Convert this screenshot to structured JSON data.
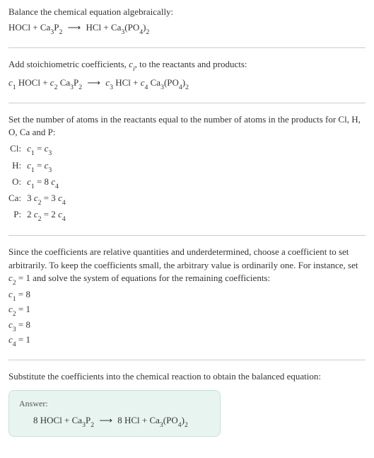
{
  "title": "Balance the chemical equation algebraically:",
  "reaction_plain": {
    "lhs": "HOCl + Ca",
    "lhs_sub1": "3",
    "lhs2": "P",
    "lhs_sub2": "2",
    "arrow": "⟶",
    "rhs": "HCl + Ca",
    "rhs_sub1": "3",
    "rhs2": "(PO",
    "rhs_sub2": "4",
    "rhs3": ")",
    "rhs_sub3": "2"
  },
  "step1_text": "Add stoichiometric coefficients, ",
  "step1_ci": "c",
  "step1_ci_sub": "i",
  "step1_text2": ", to the reactants and products:",
  "stoich": {
    "c1": "c",
    "c1s": "1",
    "c1_sp": " HOCl + ",
    "c2": "c",
    "c2s": "2",
    "c2_sp": " Ca",
    "c2_sub1": "3",
    "c2_p": "P",
    "c2_sub2": "2",
    "arrow": "⟶",
    "c3": "c",
    "c3s": "3",
    "c3_sp": " HCl + ",
    "c4": "c",
    "c4s": "4",
    "c4_sp": " Ca",
    "c4_sub1": "3",
    "c4_po": "(PO",
    "c4_sub2": "4",
    "c4_close": ")",
    "c4_sub3": "2"
  },
  "step2_text": "Set the number of atoms in the reactants equal to the number of atoms in the products for Cl, H, O, Ca and P:",
  "constraints": [
    {
      "elem": "Cl:",
      "lhs_c": "c",
      "lhs_s": "1",
      "eq": " = ",
      "rhs_c": "c",
      "rhs_s": "3",
      "rhs_pre": "",
      "rhs_post": ""
    },
    {
      "elem": "H:",
      "lhs_c": "c",
      "lhs_s": "1",
      "eq": " = ",
      "rhs_c": "c",
      "rhs_s": "3",
      "rhs_pre": "",
      "rhs_post": ""
    },
    {
      "elem": "O:",
      "lhs_c": "c",
      "lhs_s": "1",
      "eq": " = 8 ",
      "rhs_c": "c",
      "rhs_s": "4",
      "rhs_pre": "",
      "rhs_post": ""
    },
    {
      "elem": "Ca:",
      "lhs_pre": "3 ",
      "lhs_c": "c",
      "lhs_s": "2",
      "eq": " = 3 ",
      "rhs_c": "c",
      "rhs_s": "4",
      "rhs_pre": "",
      "rhs_post": ""
    },
    {
      "elem": "P:",
      "lhs_pre": "2 ",
      "lhs_c": "c",
      "lhs_s": "2",
      "eq": " = 2 ",
      "rhs_c": "c",
      "rhs_s": "4",
      "rhs_pre": "",
      "rhs_post": ""
    }
  ],
  "step3_text1": "Since the coefficients are relative quantities and underdetermined, choose a coefficient to set arbitrarily. To keep the coefficients small, the arbitrary value is ordinarily one. For instance, set ",
  "step3_c": "c",
  "step3_cs": "2",
  "step3_text2": " = 1 and solve the system of equations for the remaining coefficients:",
  "solutions": [
    {
      "c": "c",
      "s": "1",
      "val": " = 8"
    },
    {
      "c": "c",
      "s": "2",
      "val": " = 1"
    },
    {
      "c": "c",
      "s": "3",
      "val": " = 8"
    },
    {
      "c": "c",
      "s": "4",
      "val": " = 1"
    }
  ],
  "step4_text": "Substitute the coefficients into the chemical reaction to obtain the balanced equation:",
  "answer_label": "Answer:",
  "answer": {
    "lhs1": "8 HOCl + Ca",
    "sub1": "3",
    "lhs2": "P",
    "sub2": "2",
    "arrow": "⟶",
    "rhs1": "8 HCl + Ca",
    "sub3": "3",
    "rhs2": "(PO",
    "sub4": "4",
    "rhs3": ")",
    "sub5": "2"
  },
  "colors": {
    "answer_bg": "#e8f4f0",
    "answer_border": "#c8e0d8",
    "hr": "#cccccc"
  }
}
